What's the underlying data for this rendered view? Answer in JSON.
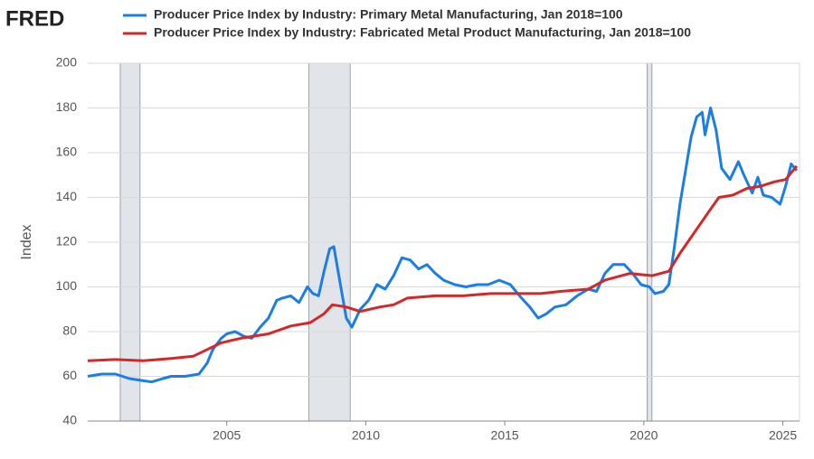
{
  "logo": "FRED",
  "chart_data": {
    "type": "line",
    "y_label": "Index",
    "xlim": [
      2000,
      2025.6
    ],
    "xticks": [
      2005,
      2010,
      2015,
      2020,
      2025
    ],
    "ylim": [
      40,
      200
    ],
    "yticks": [
      40,
      60,
      80,
      100,
      120,
      140,
      160,
      180,
      200
    ],
    "grid": true,
    "legend": "top",
    "recessions": [
      [
        2001.17,
        2001.88
      ],
      [
        2007.95,
        2009.44
      ],
      [
        2020.12,
        2020.29
      ]
    ],
    "series": [
      {
        "name": "Producer Price Index by Industry: Primary Metal Manufacturing, Jan 2018=100",
        "color": "#1a7ee6",
        "x": [
          2000.0,
          2000.5,
          2001.0,
          2001.5,
          2002.0,
          2002.3,
          2002.7,
          2003.0,
          2003.5,
          2004.0,
          2004.3,
          2004.5,
          2004.8,
          2005.0,
          2005.3,
          2005.6,
          2005.9,
          2006.2,
          2006.5,
          2006.8,
          2007.0,
          2007.3,
          2007.6,
          2007.9,
          2008.1,
          2008.3,
          2008.5,
          2008.7,
          2008.85,
          2009.1,
          2009.3,
          2009.5,
          2009.8,
          2010.1,
          2010.4,
          2010.7,
          2011.0,
          2011.3,
          2011.6,
          2011.9,
          2012.2,
          2012.5,
          2012.8,
          2013.2,
          2013.6,
          2014.0,
          2014.4,
          2014.8,
          2015.2,
          2015.6,
          2015.9,
          2016.2,
          2016.5,
          2016.8,
          2017.2,
          2017.6,
          2018.0,
          2018.3,
          2018.6,
          2018.9,
          2019.3,
          2019.6,
          2019.9,
          2020.2,
          2020.4,
          2020.7,
          2020.9,
          2021.1,
          2021.3,
          2021.5,
          2021.7,
          2021.9,
          2022.1,
          2022.2,
          2022.4,
          2022.6,
          2022.8,
          2023.1,
          2023.4,
          2023.6,
          2023.9,
          2024.1,
          2024.3,
          2024.6,
          2024.9,
          2025.1,
          2025.3,
          2025.5
        ],
        "values": [
          60,
          61,
          61,
          59,
          58,
          57.5,
          59,
          60,
          60,
          61,
          66,
          72,
          77,
          79,
          80,
          78,
          77,
          82,
          86,
          94,
          95,
          96,
          93,
          100,
          97,
          96,
          107,
          117,
          118,
          100,
          86,
          82,
          90,
          94,
          101,
          99,
          105,
          113,
          112,
          108,
          110,
          106,
          103,
          101,
          100,
          101,
          101,
          103,
          101,
          95,
          91,
          86,
          88,
          91,
          92,
          96,
          99,
          98,
          106,
          110,
          110,
          106,
          101,
          100,
          97,
          98,
          101,
          118,
          137,
          152,
          167,
          176,
          178,
          168,
          180,
          170,
          153,
          148,
          156,
          150,
          142,
          149,
          141,
          140,
          137,
          145,
          155,
          152
        ]
      },
      {
        "name": "Producer Price Index by Industry: Fabricated Metal Product Manufacturing, Jan 2018=100",
        "color": "#d62728",
        "x": [
          2000.0,
          2001.0,
          2002.0,
          2003.0,
          2003.8,
          2004.3,
          2004.8,
          2005.5,
          2006.5,
          2007.3,
          2008.0,
          2008.5,
          2008.8,
          2009.3,
          2009.8,
          2010.5,
          2011.0,
          2011.5,
          2012.5,
          2013.5,
          2014.5,
          2015.5,
          2016.3,
          2017.0,
          2018.0,
          2018.6,
          2019.5,
          2020.3,
          2020.9,
          2021.3,
          2021.8,
          2022.3,
          2022.7,
          2023.2,
          2023.7,
          2024.2,
          2024.7,
          2025.1,
          2025.5
        ],
        "values": [
          67,
          67.5,
          67,
          68,
          69,
          72,
          75,
          77,
          79,
          82.5,
          84,
          88,
          92,
          91,
          89,
          91,
          92,
          95,
          96,
          96,
          97,
          97,
          97,
          98,
          99,
          103,
          106,
          105,
          107,
          115,
          124,
          133,
          140,
          141,
          144,
          145,
          147,
          148,
          154
        ]
      }
    ]
  }
}
